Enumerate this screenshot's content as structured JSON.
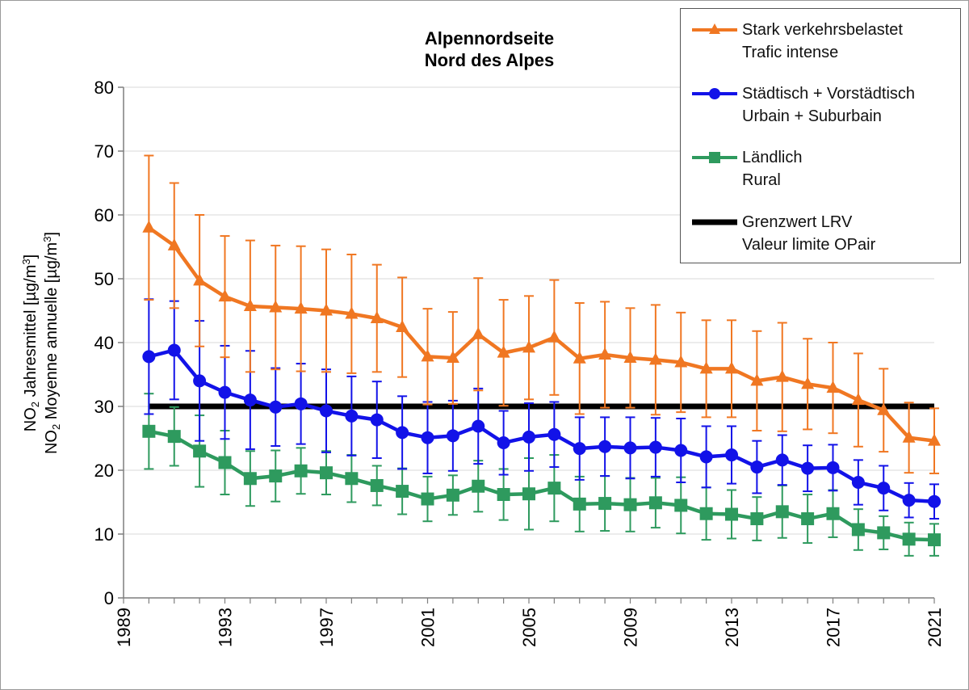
{
  "chart_data": {
    "type": "line",
    "title": [
      "Alpennordseite",
      "Nord des Alpes"
    ],
    "ylabel_line1": {
      "pre": "NO",
      "sub": "2",
      "mid": " Jahresmittel [µg/m",
      "sup": "3",
      "post": "]"
    },
    "ylabel_line2": {
      "pre": "NO",
      "sub": "2",
      "mid": " Moyenne annuelle [µg/m",
      "sup": "3",
      "post": "]"
    },
    "xlabel": "",
    "ylim": [
      0,
      80
    ],
    "yticks": [
      0,
      10,
      20,
      30,
      40,
      50,
      60,
      70,
      80
    ],
    "xlim": [
      1989,
      2021
    ],
    "xticks": [
      1989,
      1993,
      1997,
      2001,
      2005,
      2009,
      2013,
      2017,
      2021
    ],
    "grid": true,
    "legend_position": "top-right",
    "x": [
      1990,
      1991,
      1992,
      1993,
      1994,
      1995,
      1996,
      1997,
      1998,
      1999,
      2000,
      2001,
      2002,
      2003,
      2004,
      2005,
      2006,
      2007,
      2008,
      2009,
      2010,
      2011,
      2012,
      2013,
      2014,
      2015,
      2016,
      2017,
      2018,
      2019,
      2020,
      2021
    ],
    "series": [
      {
        "name": "Stark verkehrsbelastet",
        "name2": "Trafic intense",
        "color": "#f07722",
        "marker": "triangle",
        "values": [
          58.0,
          55.2,
          49.7,
          47.2,
          45.7,
          45.5,
          45.3,
          45.0,
          44.5,
          43.8,
          42.4,
          37.8,
          37.6,
          41.3,
          38.4,
          39.2,
          40.8,
          37.5,
          38.1,
          37.6,
          37.3,
          36.9,
          35.9,
          35.9,
          34.0,
          34.6,
          33.5,
          32.9,
          31.0,
          29.4,
          25.1,
          24.6
        ],
        "err": [
          11.3,
          9.8,
          10.3,
          9.5,
          10.3,
          9.7,
          9.8,
          9.6,
          9.3,
          8.4,
          7.8,
          7.5,
          7.2,
          8.8,
          8.3,
          8.1,
          9.0,
          8.7,
          8.3,
          7.8,
          8.6,
          7.8,
          7.6,
          7.6,
          7.8,
          8.5,
          7.1,
          7.1,
          7.3,
          6.5,
          5.5,
          5.1
        ]
      },
      {
        "name": "Städtisch + Vorstädtisch",
        "name2": "Urbain + Suburbain",
        "color": "#1212e8",
        "marker": "circle",
        "values": [
          37.8,
          38.8,
          34.0,
          32.2,
          31.0,
          29.9,
          30.4,
          29.3,
          28.5,
          27.9,
          25.9,
          25.1,
          25.4,
          26.9,
          24.3,
          25.2,
          25.6,
          23.4,
          23.7,
          23.5,
          23.6,
          23.1,
          22.1,
          22.4,
          20.5,
          21.6,
          20.3,
          20.4,
          18.1,
          17.2,
          15.3,
          15.1
        ],
        "err": [
          9.0,
          7.7,
          9.4,
          7.3,
          7.7,
          6.1,
          6.3,
          6.5,
          6.2,
          6.0,
          5.7,
          5.6,
          5.5,
          5.9,
          5.0,
          5.3,
          5.1,
          4.9,
          4.6,
          4.8,
          4.6,
          5.0,
          4.8,
          4.5,
          4.1,
          3.9,
          3.6,
          3.6,
          3.5,
          3.5,
          2.7,
          2.7
        ]
      },
      {
        "name": "Ländlich",
        "name2": "Rural",
        "color": "#2e9a5e",
        "marker": "square",
        "values": [
          26.1,
          25.3,
          23.0,
          21.2,
          18.7,
          19.1,
          19.9,
          19.6,
          18.7,
          17.6,
          16.7,
          15.5,
          16.1,
          17.5,
          16.2,
          16.3,
          17.2,
          14.7,
          14.8,
          14.6,
          14.9,
          14.5,
          13.2,
          13.1,
          12.4,
          13.5,
          12.4,
          13.2,
          10.7,
          10.2,
          9.2,
          9.1
        ],
        "err": [
          5.9,
          4.6,
          5.6,
          5.0,
          4.3,
          4.0,
          3.6,
          3.4,
          3.7,
          3.1,
          3.6,
          3.5,
          3.1,
          4.0,
          4.0,
          5.6,
          5.2,
          4.3,
          4.3,
          4.2,
          3.9,
          4.4,
          4.1,
          3.8,
          3.4,
          4.1,
          3.8,
          3.7,
          3.2,
          2.6,
          2.6,
          2.5
        ]
      }
    ],
    "limit": {
      "name": "Grenzwert LRV",
      "name2": "Valeur limite OPair",
      "value": 30,
      "x_from": 1990,
      "x_to": 2021,
      "color": "#000000"
    }
  }
}
